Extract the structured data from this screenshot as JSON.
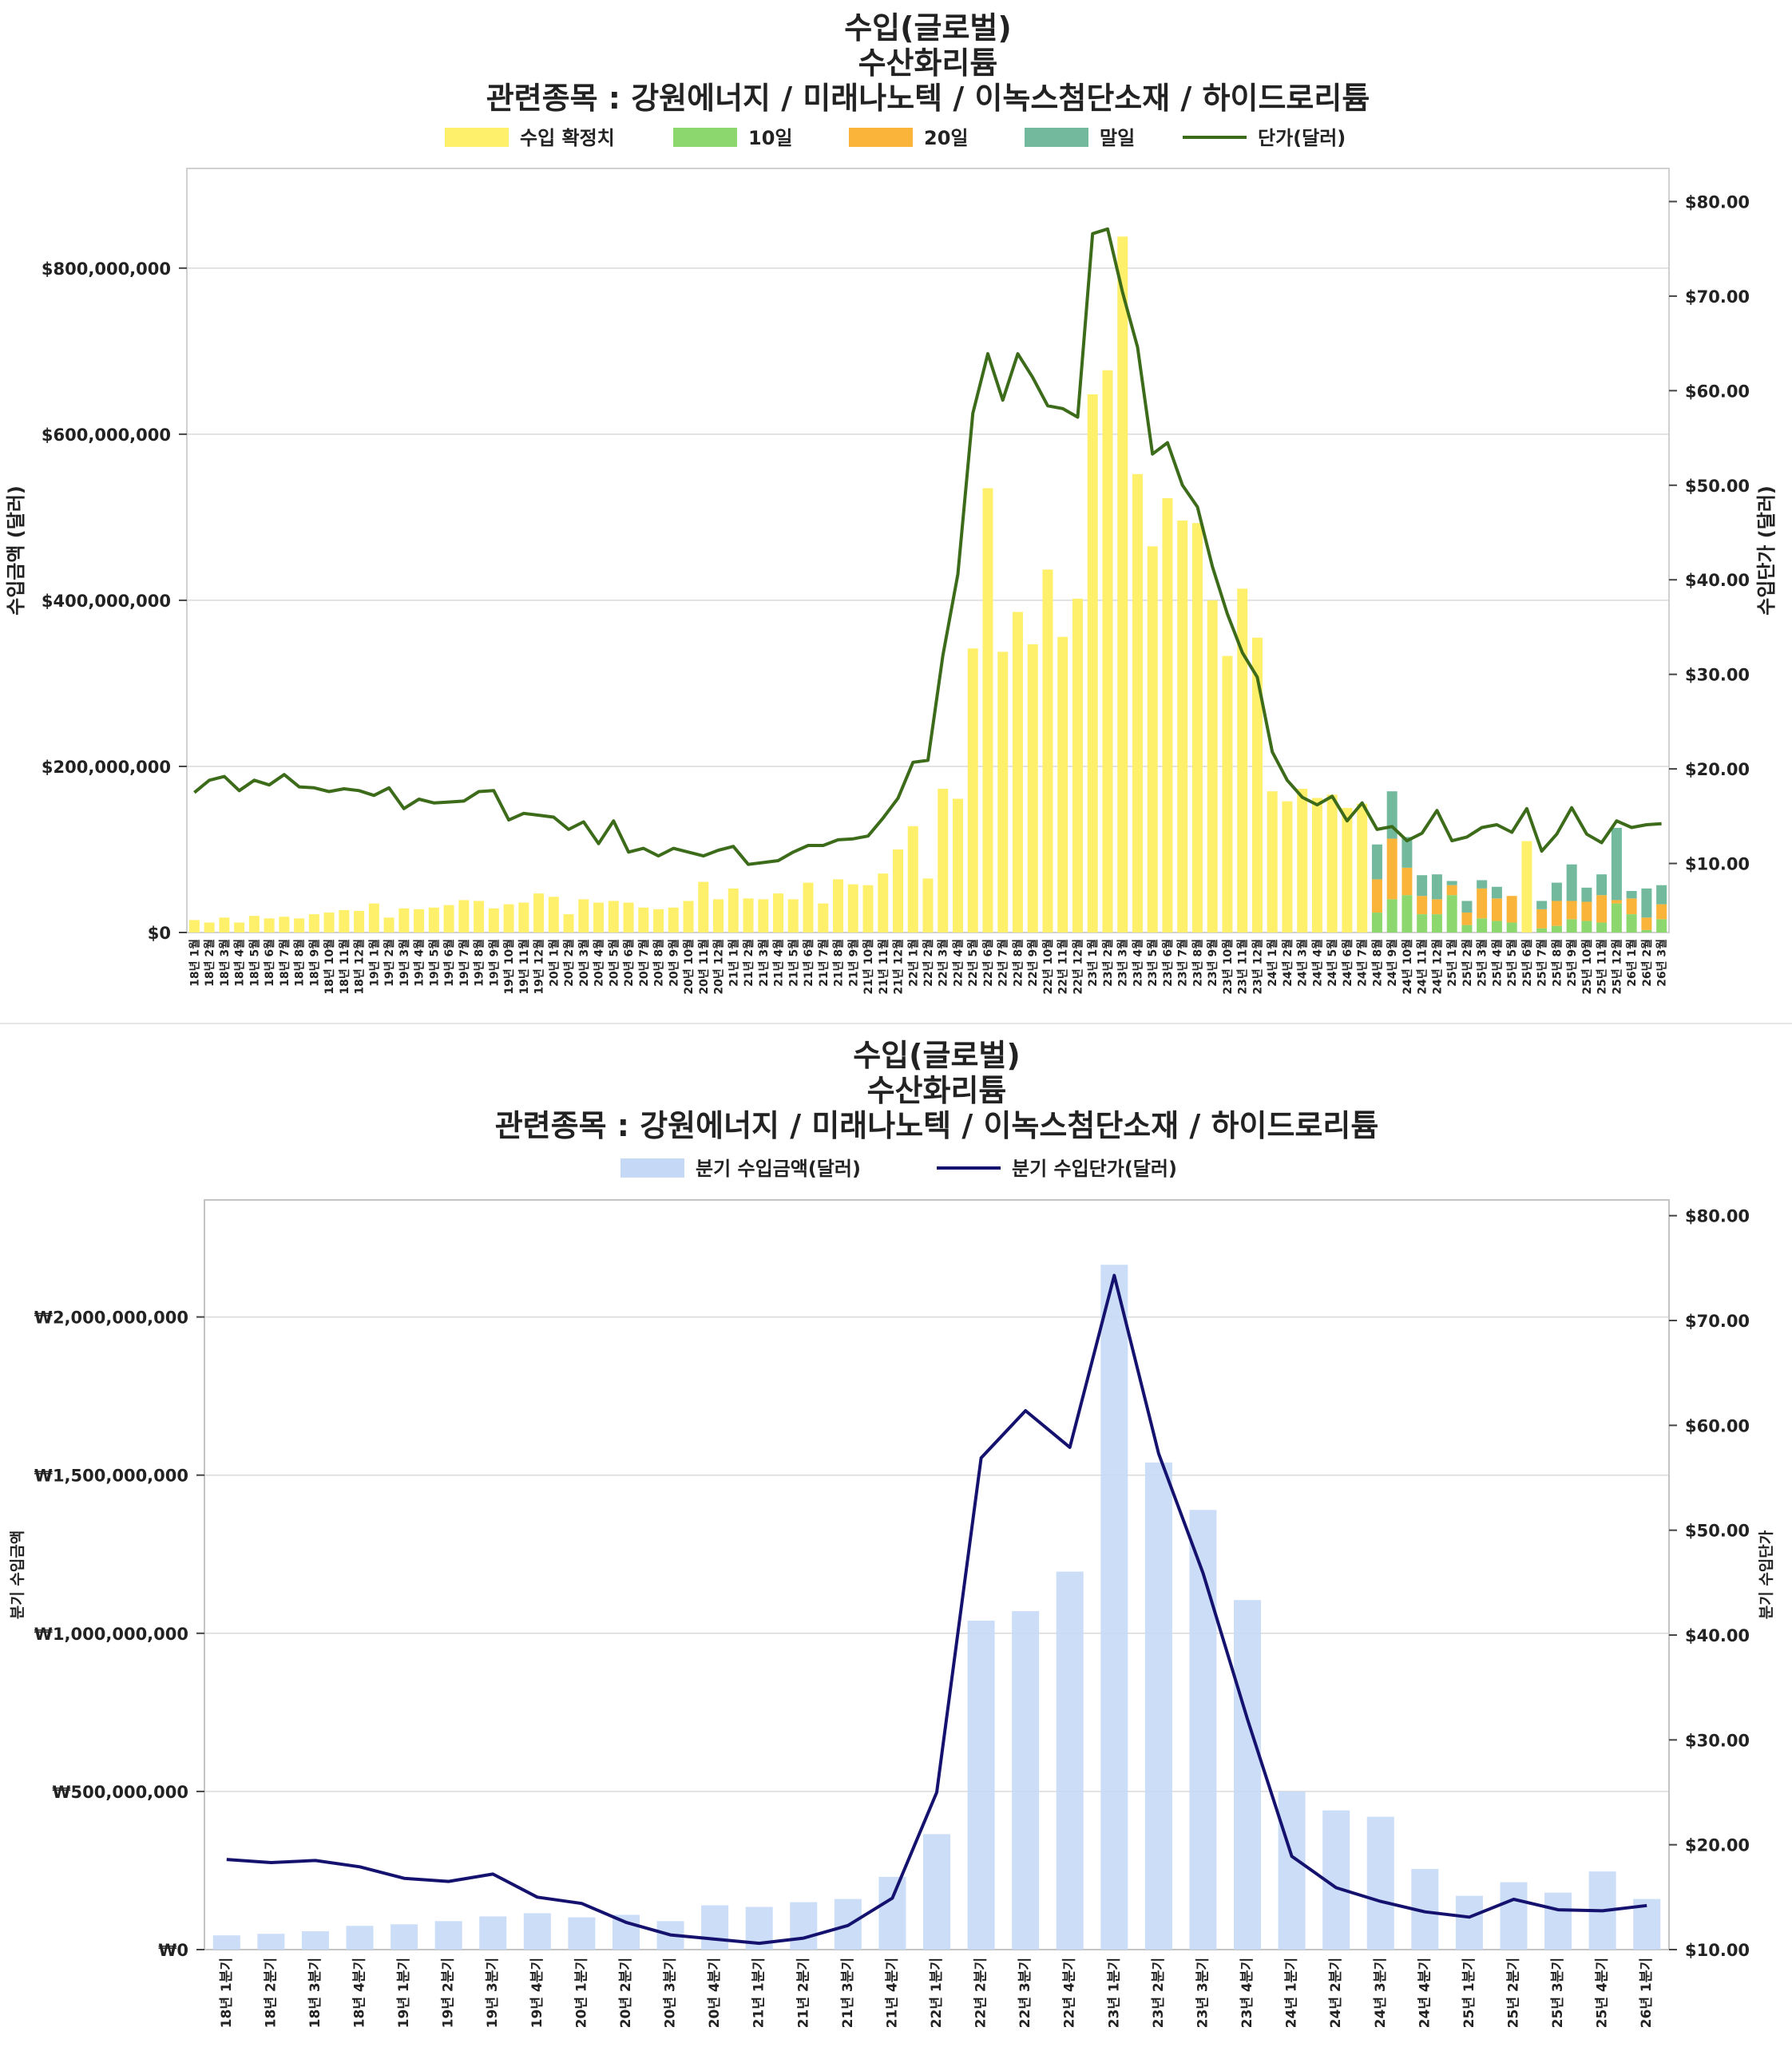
{
  "chart_data": [
    {
      "type": "bar",
      "title_lines": [
        "수입(글로벌)",
        "수산화리튬",
        "관련종목 : 강원에너지 / 미래나노텍 / 이녹스첨단소재 / 하이드로리튬"
      ],
      "legend": {
        "placement": "top",
        "items": [
          {
            "label": "수입 확정치",
            "kind": "bar",
            "color": "#fff06b"
          },
          {
            "label": "10일",
            "kind": "bar",
            "color": "#8dd86e"
          },
          {
            "label": "20일",
            "kind": "bar",
            "color": "#fbb43a"
          },
          {
            "label": "말일",
            "kind": "bar",
            "color": "#72b99e"
          },
          {
            "label": "단가(달러)",
            "kind": "line",
            "color": "#3c6b1a"
          }
        ]
      },
      "ylabel": "수입금액 (달러)",
      "y2label": "수입단가 (달러)",
      "ylim": [
        0,
        920000000
      ],
      "y2lim": [
        2.7,
        83.5
      ],
      "yticks": [
        {
          "value": 0,
          "label": "$0"
        },
        {
          "value": 200000000,
          "label": "$200,000,000"
        },
        {
          "value": 400000000,
          "label": "$400,000,000"
        },
        {
          "value": 600000000,
          "label": "$600,000,000"
        },
        {
          "value": 800000000,
          "label": "$800,000,000"
        }
      ],
      "y2ticks": [
        {
          "value": 10,
          "label": "$10.00"
        },
        {
          "value": 20,
          "label": "$20.00"
        },
        {
          "value": 30,
          "label": "$30.00"
        },
        {
          "value": 40,
          "label": "$40.00"
        },
        {
          "value": 50,
          "label": "$50.00"
        },
        {
          "value": 60,
          "label": "$60.00"
        },
        {
          "value": 70,
          "label": "$70.00"
        },
        {
          "value": 80,
          "label": "$80.00"
        }
      ],
      "grid": true,
      "categories": [
        "18년 1월",
        "18년 2월",
        "18년 3월",
        "18년 4월",
        "18년 5월",
        "18년 6월",
        "18년 7월",
        "18년 8월",
        "18년 9월",
        "18년 10월",
        "18년 11월",
        "18년 12월",
        "19년 1월",
        "19년 2월",
        "19년 3월",
        "19년 4월",
        "19년 5월",
        "19년 6월",
        "19년 7월",
        "19년 8월",
        "19년 9월",
        "19년 10월",
        "19년 11월",
        "19년 12월",
        "20년 1월",
        "20년 2월",
        "20년 3월",
        "20년 4월",
        "20년 5월",
        "20년 6월",
        "20년 7월",
        "20년 8월",
        "20년 9월",
        "20년 10월",
        "20년 11월",
        "20년 12월",
        "21년 1월",
        "21년 2월",
        "21년 3월",
        "21년 4월",
        "21년 5월",
        "21년 6월",
        "21년 7월",
        "21년 8월",
        "21년 9월",
        "21년 10월",
        "21년 11월",
        "21년 12월",
        "22년 1월",
        "22년 2월",
        "22년 3월",
        "22년 4월",
        "22년 5월",
        "22년 6월",
        "22년 7월",
        "22년 8월",
        "22년 9월",
        "22년 10월",
        "22년 11월",
        "22년 12월",
        "23년 1월",
        "23년 2월",
        "23년 3월",
        "23년 4월",
        "23년 5월",
        "23년 6월",
        "23년 7월",
        "23년 8월",
        "23년 9월",
        "23년 10월",
        "23년 11월",
        "23년 12월",
        "24년 1월",
        "24년 2월",
        "24년 3월",
        "24년 4월",
        "24년 5월",
        "24년 6월",
        "24년 7월",
        "24년 8월",
        "24년 9월",
        "24년 10월",
        "24년 11월",
        "24년 12월",
        "25년 1월",
        "25년 2월",
        "25년 3월",
        "25년 4월",
        "25년 5월",
        "25년 6월",
        "25년 7월",
        "25년 8월",
        "25년 9월",
        "25년 10월",
        "25년 11월",
        "25년 12월",
        "26년 1월",
        "26년 2월",
        "26년 3월"
      ],
      "series": [
        {
          "name": "수입 확정치",
          "values": [
            15000000,
            12000000,
            18000000,
            12000000,
            20000000,
            17000000,
            19000000,
            17000000,
            22000000,
            24000000,
            27000000,
            26000000,
            35000000,
            18000000,
            29000000,
            28000000,
            30000000,
            33000000,
            39000000,
            38000000,
            29000000,
            34000000,
            36000000,
            47000000,
            43000000,
            22000000,
            40000000,
            36000000,
            38000000,
            36000000,
            30000000,
            28000000,
            30000000,
            38000000,
            61000000,
            40000000,
            53000000,
            41000000,
            40000000,
            47000000,
            40000000,
            60000000,
            35000000,
            64000000,
            58000000,
            57000000,
            71000000,
            100000000,
            128000000,
            65000000,
            173000000,
            161000000,
            342000000,
            535000000,
            338000000,
            386000000,
            347000000,
            437000000,
            356000000,
            402000000,
            648000000,
            677000000,
            838000000,
            552000000,
            465000000,
            523000000,
            496000000,
            493000000,
            400000000,
            333000000,
            414000000,
            355000000,
            170000000,
            158000000,
            173000000,
            162000000,
            166000000,
            150000000,
            155000000,
            0,
            0,
            0,
            0,
            0,
            0,
            0,
            0,
            0,
            0,
            110000000,
            0,
            0,
            0,
            0,
            0,
            0,
            0,
            0,
            0
          ]
        },
        {
          "name": "10일",
          "values": [
            0,
            0,
            0,
            0,
            0,
            0,
            0,
            0,
            0,
            0,
            0,
            0,
            0,
            0,
            0,
            0,
            0,
            0,
            0,
            0,
            0,
            0,
            0,
            0,
            0,
            0,
            0,
            0,
            0,
            0,
            0,
            0,
            0,
            0,
            0,
            0,
            0,
            0,
            0,
            0,
            0,
            0,
            0,
            0,
            0,
            0,
            0,
            0,
            0,
            0,
            0,
            0,
            0,
            0,
            0,
            0,
            0,
            0,
            0,
            0,
            0,
            0,
            0,
            0,
            0,
            0,
            0,
            0,
            0,
            0,
            0,
            0,
            0,
            0,
            0,
            0,
            0,
            0,
            0,
            24000000,
            40000000,
            45000000,
            22000000,
            22000000,
            45000000,
            9000000,
            17000000,
            14000000,
            12000000,
            0,
            5000000,
            8000000,
            16000000,
            14000000,
            12000000,
            35000000,
            22000000,
            3000000,
            16000000
          ]
        },
        {
          "name": "20일",
          "values": [
            0,
            0,
            0,
            0,
            0,
            0,
            0,
            0,
            0,
            0,
            0,
            0,
            0,
            0,
            0,
            0,
            0,
            0,
            0,
            0,
            0,
            0,
            0,
            0,
            0,
            0,
            0,
            0,
            0,
            0,
            0,
            0,
            0,
            0,
            0,
            0,
            0,
            0,
            0,
            0,
            0,
            0,
            0,
            0,
            0,
            0,
            0,
            0,
            0,
            0,
            0,
            0,
            0,
            0,
            0,
            0,
            0,
            0,
            0,
            0,
            0,
            0,
            0,
            0,
            0,
            0,
            0,
            0,
            0,
            0,
            0,
            0,
            0,
            0,
            0,
            0,
            0,
            0,
            0,
            40000000,
            73000000,
            33000000,
            22000000,
            18000000,
            12000000,
            15000000,
            36000000,
            27000000,
            32000000,
            0,
            23000000,
            30000000,
            22000000,
            23000000,
            33000000,
            4000000,
            19000000,
            15000000,
            18000000
          ]
        },
        {
          "name": "말일",
          "values": [
            0,
            0,
            0,
            0,
            0,
            0,
            0,
            0,
            0,
            0,
            0,
            0,
            0,
            0,
            0,
            0,
            0,
            0,
            0,
            0,
            0,
            0,
            0,
            0,
            0,
            0,
            0,
            0,
            0,
            0,
            0,
            0,
            0,
            0,
            0,
            0,
            0,
            0,
            0,
            0,
            0,
            0,
            0,
            0,
            0,
            0,
            0,
            0,
            0,
            0,
            0,
            0,
            0,
            0,
            0,
            0,
            0,
            0,
            0,
            0,
            0,
            0,
            0,
            0,
            0,
            0,
            0,
            0,
            0,
            0,
            0,
            0,
            0,
            0,
            0,
            0,
            0,
            0,
            0,
            42000000,
            57000000,
            37000000,
            25000000,
            30000000,
            5000000,
            14000000,
            10000000,
            14000000,
            0,
            0,
            10000000,
            22000000,
            44000000,
            17000000,
            25000000,
            87000000,
            9000000,
            35000000,
            23000000
          ]
        },
        {
          "name": "단가(달러)",
          "axis": "right",
          "values": [
            17.5,
            18.8,
            19.2,
            17.7,
            18.8,
            18.3,
            19.4,
            18.1,
            18.0,
            17.6,
            17.9,
            17.7,
            17.2,
            18.0,
            15.8,
            16.8,
            16.4,
            16.5,
            16.6,
            17.6,
            17.7,
            14.6,
            15.3,
            15.1,
            14.9,
            13.6,
            14.4,
            12.1,
            14.5,
            11.2,
            11.6,
            10.8,
            11.6,
            11.2,
            10.8,
            11.4,
            11.8,
            9.9,
            10.1,
            10.3,
            11.2,
            11.9,
            11.9,
            12.5,
            12.6,
            12.9,
            14.8,
            16.9,
            20.7,
            20.9,
            32.0,
            40.6,
            57.6,
            63.9,
            59.0,
            63.9,
            61.4,
            58.4,
            58.1,
            57.2,
            76.6,
            77.1,
            70.4,
            64.6,
            53.3,
            54.5,
            50.0,
            47.7,
            41.4,
            36.4,
            32.3,
            29.7,
            21.8,
            18.8,
            17.0,
            16.2,
            17.1,
            14.5,
            16.4,
            13.6,
            13.9,
            12.4,
            13.2,
            15.6,
            12.4,
            12.8,
            13.8,
            14.1,
            13.3,
            15.8,
            11.3,
            13.1,
            15.9,
            13.1,
            12.2,
            14.5,
            13.8,
            14.1,
            14.2
          ]
        }
      ]
    },
    {
      "type": "bar",
      "title_lines": [
        "수입(글로벌)",
        "수산화리튬",
        "관련종목 : 강원에너지 / 미래나노텍 / 이녹스첨단소재 / 하이드로리튬"
      ],
      "legend": {
        "placement": "top",
        "items": [
          {
            "label": "분기 수입금액(달러)",
            "kind": "bar",
            "color": "#c5d9f6"
          },
          {
            "label": "분기 수입단가(달러)",
            "kind": "line",
            "color": "#14126e"
          }
        ]
      },
      "ylabel": "분기 수입금액",
      "y2label": "분기 수입단가",
      "ylim": [
        0,
        2370000000
      ],
      "y2lim": [
        10,
        81.5
      ],
      "yticks": [
        {
          "value": 0,
          "label": "₩0"
        },
        {
          "value": 500000000,
          "label": "₩500,000,000"
        },
        {
          "value": 1000000000,
          "label": "₩1,000,000,000"
        },
        {
          "value": 1500000000,
          "label": "₩1,500,000,000"
        },
        {
          "value": 2000000000,
          "label": "₩2,000,000,000"
        }
      ],
      "y2ticks": [
        {
          "value": 10,
          "label": "$10.00"
        },
        {
          "value": 20,
          "label": "$20.00"
        },
        {
          "value": 30,
          "label": "$30.00"
        },
        {
          "value": 40,
          "label": "$40.00"
        },
        {
          "value": 50,
          "label": "$50.00"
        },
        {
          "value": 60,
          "label": "$60.00"
        },
        {
          "value": 70,
          "label": "$70.00"
        },
        {
          "value": 80,
          "label": "$80.00"
        }
      ],
      "grid": true,
      "categories": [
        "18년 1분기",
        "18년 2분기",
        "18년 3분기",
        "18년 4분기",
        "19년 1분기",
        "19년 2분기",
        "19년 3분기",
        "19년 4분기",
        "20년 1분기",
        "20년 2분기",
        "20년 3분기",
        "20년 4분기",
        "21년 1분기",
        "21년 2분기",
        "21년 3분기",
        "21년 4분기",
        "22년 1분기",
        "22년 2분기",
        "22년 3분기",
        "22년 4분기",
        "23년 1분기",
        "23년 2분기",
        "23년 3분기",
        "23년 4분기",
        "24년 1분기",
        "24년 2분기",
        "24년 3분기",
        "24년 4분기",
        "25년 1분기",
        "25년 2분기",
        "25년 3분기",
        "25년 4분기",
        "26년 1분기"
      ],
      "series": [
        {
          "name": "분기 수입금액(달러)",
          "values": [
            45000000,
            50000000,
            58000000,
            75000000,
            80000000,
            90000000,
            105000000,
            115000000,
            102000000,
            110000000,
            90000000,
            140000000,
            135000000,
            150000000,
            160000000,
            230000000,
            365000000,
            1040000000,
            1070000000,
            1195000000,
            2165000000,
            1540000000,
            1390000000,
            1105000000,
            500000000,
            440000000,
            420000000,
            255000000,
            170000000,
            213000000,
            180000000,
            247000000,
            160000000
          ]
        },
        {
          "name": "분기 수입단가(달러)",
          "axis": "right",
          "values": [
            18.6,
            18.3,
            18.5,
            17.9,
            16.8,
            16.5,
            17.2,
            15.0,
            14.4,
            12.6,
            11.4,
            11.0,
            10.6,
            11.1,
            12.3,
            14.9,
            25.0,
            56.9,
            61.4,
            57.9,
            74.3,
            57.3,
            45.9,
            32.0,
            18.9,
            15.9,
            14.6,
            13.6,
            13.1,
            14.8,
            13.8,
            13.7,
            14.2
          ]
        }
      ]
    }
  ]
}
